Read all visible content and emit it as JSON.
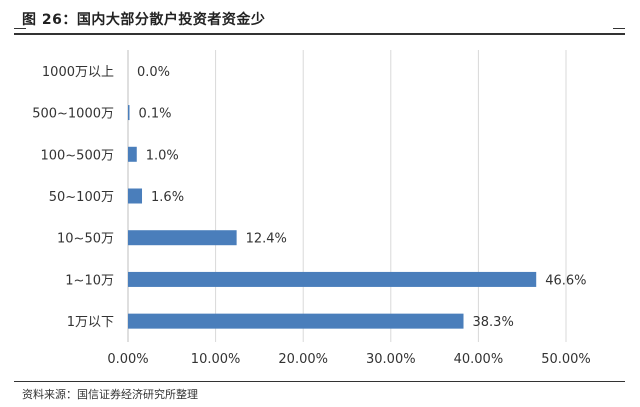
{
  "figure": {
    "title": "图 26：国内大部分散户投资者资金少",
    "source": "资料来源：国信证券经济研究所整理"
  },
  "chart_data": {
    "type": "bar",
    "orientation": "horizontal",
    "categories": [
      "1000万以上",
      "500~1000万",
      "100~500万",
      "50~100万",
      "10~50万",
      "1~10万",
      "1万以下"
    ],
    "values": [
      0.0,
      0.1,
      1.0,
      1.6,
      12.4,
      46.6,
      38.3
    ],
    "data_labels": [
      "0.0%",
      "0.1%",
      "1.0%",
      "1.6%",
      "12.4%",
      "46.6%",
      "38.3%"
    ],
    "xlim": [
      0,
      50
    ],
    "xticks": [
      0,
      10,
      20,
      30,
      40,
      50
    ],
    "xtick_labels": [
      "0.00%",
      "10.00%",
      "20.00%",
      "30.00%",
      "40.00%",
      "50.00%"
    ],
    "grid": "vertical",
    "bar_color": "#4a7ebb",
    "grid_color": "#d9d9d9"
  }
}
